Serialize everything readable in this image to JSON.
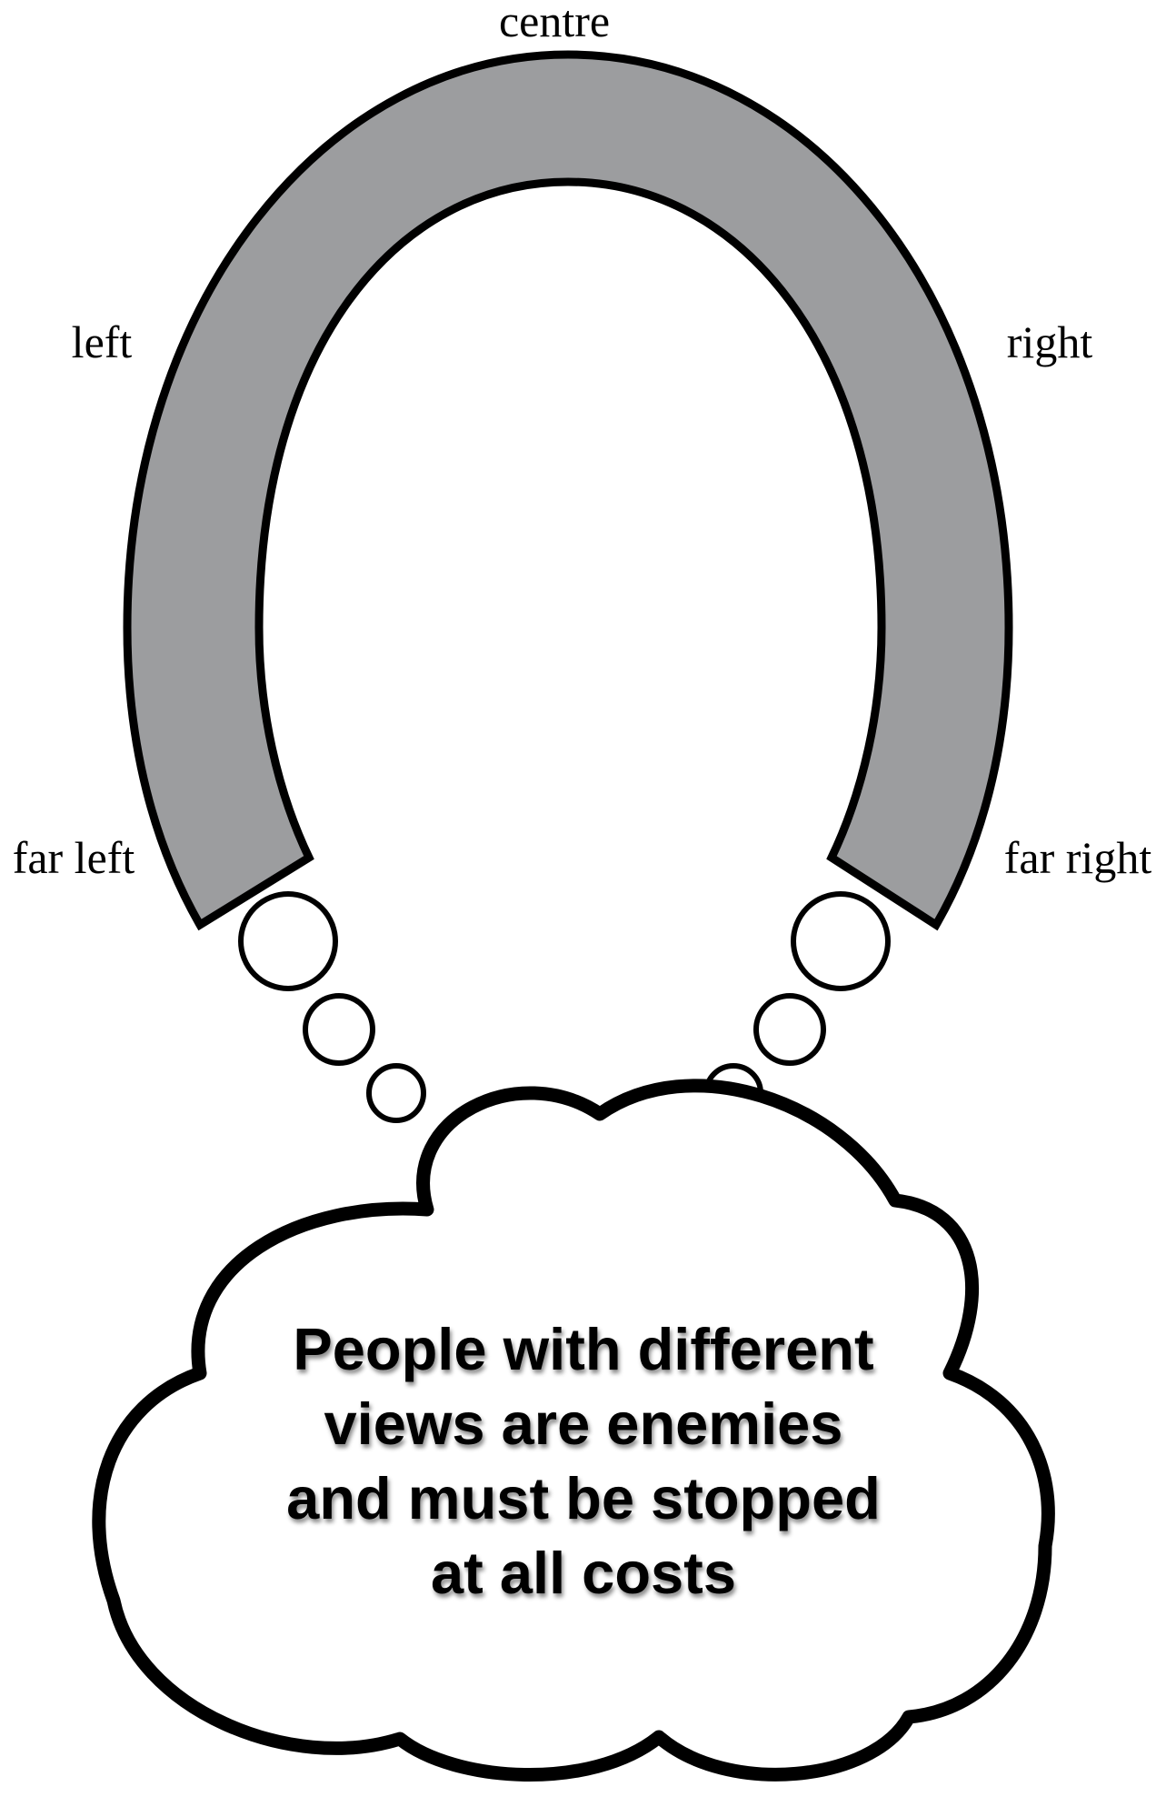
{
  "labels": {
    "centre": "centre",
    "left": "left",
    "right": "right",
    "far_left": "far left",
    "far_right": "far right"
  },
  "cloud": {
    "lines": [
      "People with different",
      "views are enemies",
      "and must be stopped",
      "at all costs"
    ]
  },
  "colors": {
    "arch_fill": "#9c9d9f",
    "stroke": "#000000",
    "background": "#ffffff"
  }
}
